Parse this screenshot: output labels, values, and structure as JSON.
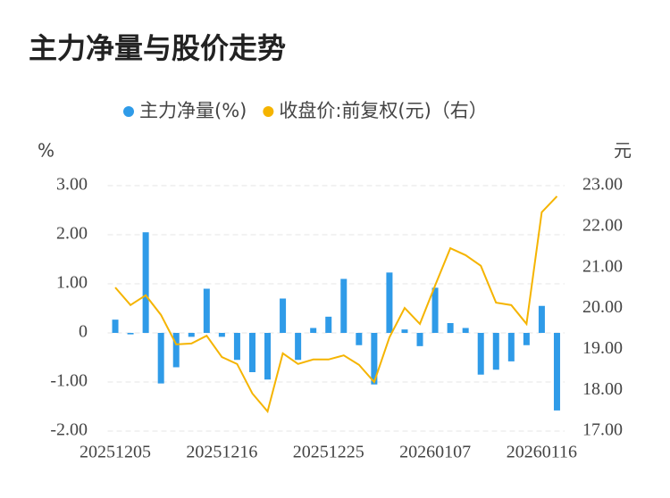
{
  "chart_data": {
    "type": "bar_line",
    "title": "主力净量与股价走势",
    "y_unit": "%",
    "y2_unit": "元",
    "categories": [
      "20251205",
      null,
      null,
      null,
      null,
      null,
      null,
      "20251216",
      null,
      null,
      null,
      null,
      null,
      null,
      "20251225",
      null,
      null,
      null,
      null,
      null,
      null,
      "20260107",
      null,
      null,
      null,
      null,
      null,
      null,
      "20260116",
      null
    ],
    "series": [
      {
        "name": "主力净量(%)",
        "color": "#2f9be8",
        "kind": "bar",
        "axis": "y",
        "values": [
          0.27,
          -0.03,
          2.05,
          -1.03,
          -0.7,
          -0.08,
          0.9,
          -0.08,
          -0.55,
          -0.8,
          -0.95,
          0.7,
          -0.55,
          0.1,
          0.33,
          1.1,
          -0.25,
          -1.05,
          1.23,
          0.07,
          -0.27,
          0.92,
          0.2,
          0.1,
          -0.85,
          -0.75,
          -0.58,
          -0.25,
          0.55,
          -1.58
        ]
      },
      {
        "name": "收盘价:前复权(元)（右）",
        "color": "#f5b400",
        "kind": "line",
        "axis": "y2",
        "values": [
          20.51,
          20.08,
          20.32,
          19.84,
          19.12,
          19.14,
          19.33,
          18.81,
          18.64,
          17.92,
          17.48,
          18.9,
          18.64,
          18.75,
          18.75,
          18.85,
          18.62,
          18.2,
          19.29,
          20.01,
          19.62,
          20.56,
          21.47,
          21.3,
          21.04,
          20.14,
          20.08,
          19.62,
          22.35,
          22.74
        ]
      }
    ],
    "ylim": [
      -2,
      3
    ],
    "yticks": [
      {
        "value": -2,
        "label": "-2.00"
      },
      {
        "value": -1,
        "label": "-1.00"
      },
      0,
      {
        "value": 1,
        "label": "1.00"
      },
      {
        "value": 2,
        "label": "2.00"
      },
      {
        "value": 3,
        "label": "3.00"
      }
    ],
    "y2lim": [
      17,
      23
    ],
    "y2ticks": [
      {
        "value": 17,
        "label": "17.00"
      },
      {
        "value": 18,
        "label": "18.00"
      },
      {
        "value": 19,
        "label": "19.00"
      },
      {
        "value": 20,
        "label": "20.00"
      },
      {
        "value": 21,
        "label": "21.00"
      },
      {
        "value": 22,
        "label": "22.00"
      },
      {
        "value": 23,
        "label": "23.00"
      }
    ],
    "grid": true
  }
}
